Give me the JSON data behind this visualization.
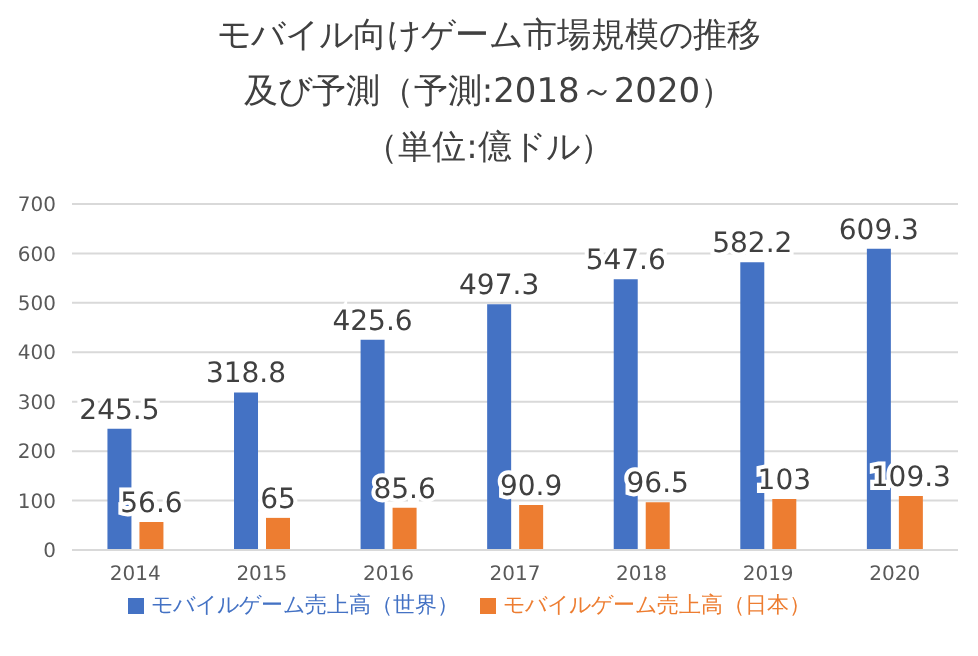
{
  "chart_data": {
    "type": "bar",
    "title": "モバイル向けゲーム市場規模の推移",
    "subtitle": "及び予測（予測:2018～2020）",
    "annotations": [
      "（単位:億ドル）"
    ],
    "categories": [
      "2014",
      "2015",
      "2016",
      "2017",
      "2018",
      "2019",
      "2020"
    ],
    "series": [
      {
        "name": "モバイルゲーム売上高（世界）",
        "color": "#4472c4",
        "values": [
          245.5,
          318.8,
          425.6,
          497.3,
          547.6,
          582.2,
          609.3
        ]
      },
      {
        "name": "モバイルゲーム売上高（日本）",
        "color": "#ed7d31",
        "values": [
          56.6,
          65,
          85.6,
          90.9,
          96.5,
          103,
          109.3
        ]
      }
    ],
    "ylim": [
      0,
      700
    ],
    "yticks": [
      0,
      100,
      200,
      300,
      400,
      500,
      600,
      700
    ],
    "grid": "y",
    "legend": "bottom",
    "data_labels": true
  }
}
